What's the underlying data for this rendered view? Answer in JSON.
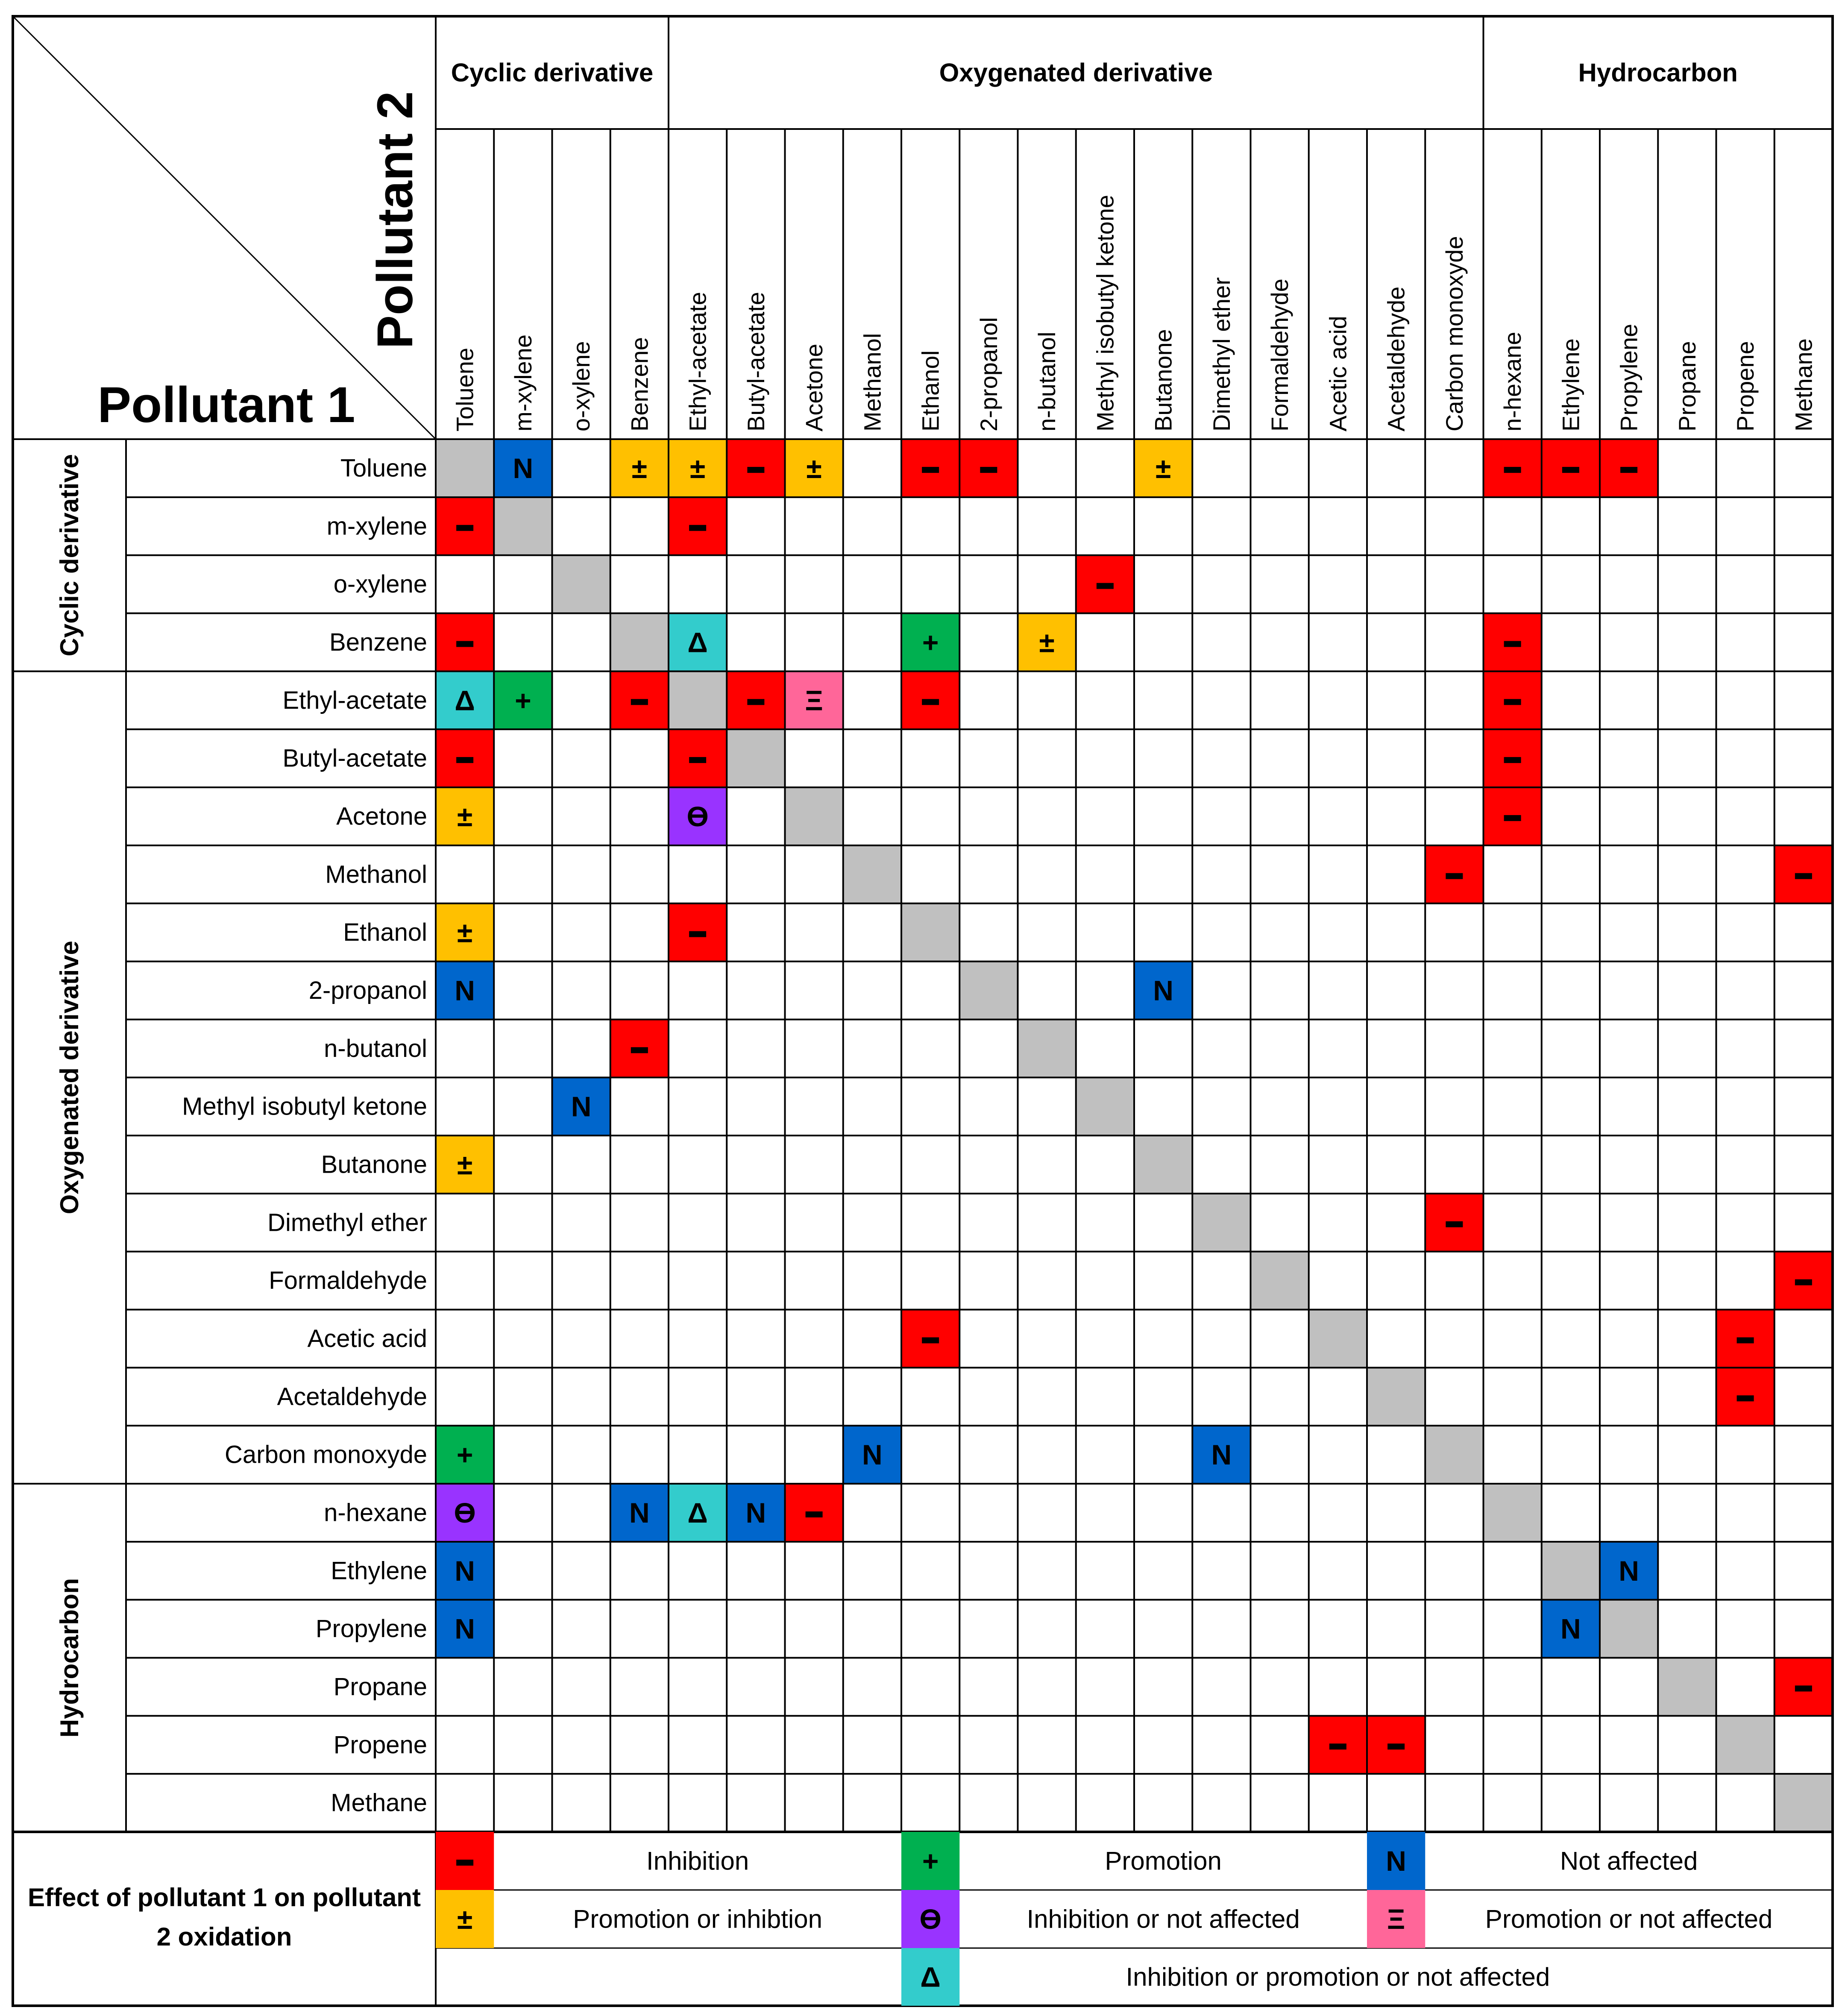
{
  "chart_data": {
    "type": "table",
    "title": "Effect of pollutant 1 on pollutant 2 oxidation",
    "row_axis_label": "Pollutant 1",
    "col_axis_label": "Pollutant 2",
    "groups": [
      {
        "name": "Cyclic derivative",
        "members": [
          "Toluene",
          "m-xylene",
          "o-xylene",
          "Benzene"
        ]
      },
      {
        "name": "Oxygenated derivative",
        "members": [
          "Ethyl-acetate",
          "Butyl-acetate",
          "Acetone",
          "Methanol",
          "Ethanol",
          "2-propanol",
          "n-butanol",
          "Methyl isobutyl ketone",
          "Butanone",
          "Dimethyl ether",
          "Formaldehyde",
          "Acetic acid",
          "Acetaldehyde",
          "Carbon monoxyde"
        ]
      },
      {
        "name": "Hydrocarbon",
        "members": [
          "n-hexane",
          "Ethylene",
          "Propylene",
          "Propane",
          "Propene",
          "Methane"
        ]
      }
    ],
    "compounds": [
      "Toluene",
      "m-xylene",
      "o-xylene",
      "Benzene",
      "Ethyl-acetate",
      "Butyl-acetate",
      "Acetone",
      "Methanol",
      "Ethanol",
      "2-propanol",
      "n-butanol",
      "Methyl isobutyl ketone",
      "Butanone",
      "Dimethyl ether",
      "Formaldehyde",
      "Acetic acid",
      "Acetaldehyde",
      "Carbon monoxyde",
      "n-hexane",
      "Ethylene",
      "Propylene",
      "Propane",
      "Propene",
      "Methane"
    ],
    "effects": {
      "minus": {
        "symbol": "–",
        "label": "Inhibition",
        "color": "#ff0000"
      },
      "plus": {
        "symbol": "+",
        "label": "Promotion",
        "color": "#00b050"
      },
      "N": {
        "symbol": "N",
        "label": "Not affected",
        "color": "#0066cc"
      },
      "pm": {
        "symbol": "±",
        "label": "Promotion or inhibtion",
        "color": "#ffc000"
      },
      "theta": {
        "symbol": "ϴ",
        "label": "Inhibition or not affected",
        "color": "#9933ff"
      },
      "xi": {
        "symbol": "Ξ",
        "label": "Promotion or not affected",
        "color": "#ff6699"
      },
      "delta": {
        "symbol": "Δ",
        "label": "Inhibition or promotion or not affected",
        "color": "#33cccc"
      }
    },
    "diagonal_color": "#c0c0c0",
    "cells": [
      {
        "row": "Toluene",
        "col": "m-xylene",
        "effect": "N"
      },
      {
        "row": "Toluene",
        "col": "Benzene",
        "effect": "pm"
      },
      {
        "row": "Toluene",
        "col": "Ethyl-acetate",
        "effect": "pm"
      },
      {
        "row": "Toluene",
        "col": "Butyl-acetate",
        "effect": "minus"
      },
      {
        "row": "Toluene",
        "col": "Acetone",
        "effect": "pm"
      },
      {
        "row": "Toluene",
        "col": "Ethanol",
        "effect": "minus"
      },
      {
        "row": "Toluene",
        "col": "2-propanol",
        "effect": "minus"
      },
      {
        "row": "Toluene",
        "col": "Butanone",
        "effect": "pm"
      },
      {
        "row": "Toluene",
        "col": "n-hexane",
        "effect": "minus"
      },
      {
        "row": "Toluene",
        "col": "Ethylene",
        "effect": "minus"
      },
      {
        "row": "Toluene",
        "col": "Propylene",
        "effect": "minus"
      },
      {
        "row": "m-xylene",
        "col": "Toluene",
        "effect": "minus"
      },
      {
        "row": "m-xylene",
        "col": "Ethyl-acetate",
        "effect": "minus"
      },
      {
        "row": "o-xylene",
        "col": "Methyl isobutyl ketone",
        "effect": "minus"
      },
      {
        "row": "Benzene",
        "col": "Toluene",
        "effect": "minus"
      },
      {
        "row": "Benzene",
        "col": "Ethyl-acetate",
        "effect": "delta"
      },
      {
        "row": "Benzene",
        "col": "Ethanol",
        "effect": "plus"
      },
      {
        "row": "Benzene",
        "col": "n-butanol",
        "effect": "pm"
      },
      {
        "row": "Benzene",
        "col": "n-hexane",
        "effect": "minus"
      },
      {
        "row": "Ethyl-acetate",
        "col": "Toluene",
        "effect": "delta"
      },
      {
        "row": "Ethyl-acetate",
        "col": "m-xylene",
        "effect": "plus"
      },
      {
        "row": "Ethyl-acetate",
        "col": "Benzene",
        "effect": "minus"
      },
      {
        "row": "Ethyl-acetate",
        "col": "Butyl-acetate",
        "effect": "minus"
      },
      {
        "row": "Ethyl-acetate",
        "col": "Acetone",
        "effect": "xi"
      },
      {
        "row": "Ethyl-acetate",
        "col": "Ethanol",
        "effect": "minus"
      },
      {
        "row": "Ethyl-acetate",
        "col": "n-hexane",
        "effect": "minus"
      },
      {
        "row": "Butyl-acetate",
        "col": "Toluene",
        "effect": "minus"
      },
      {
        "row": "Butyl-acetate",
        "col": "Ethyl-acetate",
        "effect": "minus"
      },
      {
        "row": "Butyl-acetate",
        "col": "n-hexane",
        "effect": "minus"
      },
      {
        "row": "Acetone",
        "col": "Toluene",
        "effect": "pm"
      },
      {
        "row": "Acetone",
        "col": "Ethyl-acetate",
        "effect": "theta"
      },
      {
        "row": "Acetone",
        "col": "n-hexane",
        "effect": "minus"
      },
      {
        "row": "Methanol",
        "col": "Carbon monoxyde",
        "effect": "minus"
      },
      {
        "row": "Methanol",
        "col": "Methane",
        "effect": "minus"
      },
      {
        "row": "Ethanol",
        "col": "Toluene",
        "effect": "pm"
      },
      {
        "row": "Ethanol",
        "col": "Ethyl-acetate",
        "effect": "minus"
      },
      {
        "row": "2-propanol",
        "col": "Toluene",
        "effect": "N"
      },
      {
        "row": "2-propanol",
        "col": "Butanone",
        "effect": "N"
      },
      {
        "row": "n-butanol",
        "col": "Benzene",
        "effect": "minus"
      },
      {
        "row": "Methyl isobutyl ketone",
        "col": "o-xylene",
        "effect": "N"
      },
      {
        "row": "Butanone",
        "col": "Toluene",
        "effect": "pm"
      },
      {
        "row": "Dimethyl ether",
        "col": "Carbon monoxyde",
        "effect": "minus"
      },
      {
        "row": "Formaldehyde",
        "col": "Methane",
        "effect": "minus"
      },
      {
        "row": "Acetic acid",
        "col": "Ethanol",
        "effect": "minus"
      },
      {
        "row": "Acetic acid",
        "col": "Propene",
        "effect": "minus"
      },
      {
        "row": "Acetaldehyde",
        "col": "Propene",
        "effect": "minus"
      },
      {
        "row": "Carbon monoxyde",
        "col": "Toluene",
        "effect": "plus"
      },
      {
        "row": "Carbon monoxyde",
        "col": "Methanol",
        "effect": "N"
      },
      {
        "row": "Carbon monoxyde",
        "col": "Dimethyl ether",
        "effect": "N"
      },
      {
        "row": "n-hexane",
        "col": "Toluene",
        "effect": "theta"
      },
      {
        "row": "n-hexane",
        "col": "Benzene",
        "effect": "N"
      },
      {
        "row": "n-hexane",
        "col": "Ethyl-acetate",
        "effect": "delta"
      },
      {
        "row": "n-hexane",
        "col": "Butyl-acetate",
        "effect": "N"
      },
      {
        "row": "n-hexane",
        "col": "Acetone",
        "effect": "minus"
      },
      {
        "row": "Ethylene",
        "col": "Toluene",
        "effect": "N"
      },
      {
        "row": "Ethylene",
        "col": "Propylene",
        "effect": "N"
      },
      {
        "row": "Propylene",
        "col": "Toluene",
        "effect": "N"
      },
      {
        "row": "Propylene",
        "col": "Ethylene",
        "effect": "N"
      },
      {
        "row": "Propane",
        "col": "Methane",
        "effect": "minus"
      },
      {
        "row": "Propene",
        "col": "Acetic acid",
        "effect": "minus"
      },
      {
        "row": "Propene",
        "col": "Acetaldehyde",
        "effect": "minus"
      }
    ],
    "legend": {
      "title": "Effect of pollutant 1 on pollutant 2 oxidation",
      "order": [
        "minus",
        "plus",
        "N",
        "pm",
        "theta",
        "xi",
        "delta"
      ]
    }
  }
}
